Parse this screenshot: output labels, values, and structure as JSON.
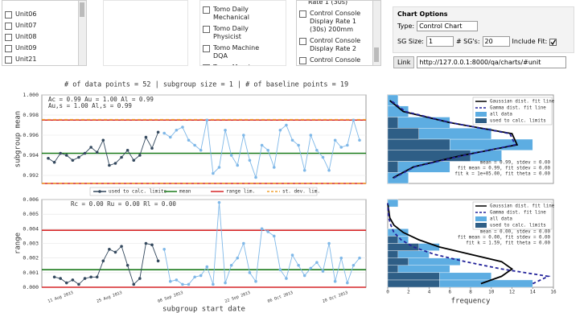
{
  "units": [
    "Unit06",
    "Unit07",
    "Unit08",
    "Unit09",
    "Unit21"
  ],
  "tests": [
    "Tomo Daily Mechanical",
    "Tomo Daily Physicist",
    "Tomo Machine DQA",
    "Tomo Morning Therapy Checks"
  ],
  "test_items_lead": "Rate 1 (30s)",
  "test_items": [
    "Control Console Display Rate 1 (30s) 200mm",
    "Control Console Display Rate 2",
    "Control Console Display Rate 2 (30s)"
  ],
  "chart_options": {
    "title": "Chart Options",
    "type_label": "Type:",
    "type": "Control Chart",
    "sg_size_label": "SG Size:",
    "sg_size": "1",
    "sgs_label": "# SG's:",
    "sgs": "20",
    "include_fit_label": "Include Fit:",
    "include_fit": true,
    "link_label": "Link",
    "link": "http://127.0.0.1:8000/qa/charts/#unit"
  },
  "summary": "# of data points = 52 |  subgroup size = 1 |  # of baseline points = 19",
  "chart_data": [
    {
      "type": "control",
      "y_label": "subgroup mean",
      "ylim": [
        0.9912,
        1.0
      ],
      "yticks": [
        0.992,
        0.994,
        0.996,
        0.998,
        {
          "value": 1.0,
          "label": "1.000"
        }
      ],
      "grid": true,
      "annotations": [
        "Ac    = 0.99    Au = 1.00    Al = 0.99",
        "Au,s = 1.00  Al,s = 0.99"
      ],
      "series": [
        {
          "name": "used to calc. limits",
          "color": "#34495e",
          "values": [
            0.9937,
            0.9933,
            0.9942,
            0.994,
            0.9935,
            0.9938,
            0.9942,
            0.9948,
            0.9943,
            0.9955,
            0.993,
            0.9932,
            0.9938,
            0.9945,
            0.9935,
            0.994,
            0.9958,
            0.9947,
            0.9963,
            null,
            null,
            null,
            null,
            null,
            null,
            null,
            null,
            null,
            null,
            null,
            null,
            null,
            null,
            null,
            null,
            null,
            null,
            null,
            null,
            null,
            null,
            null,
            null,
            null,
            null,
            null,
            null,
            null,
            null,
            null,
            null,
            null
          ]
        },
        {
          "color": "#7fb8e8",
          "values": [
            null,
            null,
            null,
            null,
            null,
            null,
            null,
            null,
            null,
            null,
            null,
            null,
            null,
            null,
            null,
            null,
            null,
            null,
            null,
            0.9962,
            0.9958,
            0.9965,
            0.9968,
            0.9955,
            0.995,
            0.9945,
            0.9975,
            0.9922,
            0.9928,
            0.9965,
            0.994,
            0.993,
            0.996,
            0.9935,
            0.9918,
            0.995,
            0.9945,
            0.9928,
            0.9965,
            0.997,
            0.9955,
            0.995,
            0.9925,
            0.996,
            0.9945,
            0.9938,
            0.9925,
            0.9955,
            0.9948,
            0.995,
            0.9975,
            0.9955
          ]
        }
      ],
      "limits": [
        {
          "name": "mean",
          "color": "#1a7a1a",
          "values": [
            0.9942
          ]
        },
        {
          "name": "range lim.",
          "color": "#d62728",
          "values": [
            0.9975,
            0.9912
          ]
        },
        {
          "name": "st. dev. lim.",
          "color": "#f0a030",
          "dash": true,
          "values": [
            0.99755,
            0.99122
          ]
        }
      ]
    },
    {
      "type": "control",
      "y_label": "range",
      "x_label": "subgroup start date",
      "ylim": [
        0,
        0.006
      ],
      "yticks": [
        {
          "value": 0,
          "label": "0.000"
        },
        0.001,
        0.002,
        0.003,
        0.004,
        0.005,
        0.006
      ],
      "grid": true,
      "annotations": [
        "Rc = 0.00    Ru = 0.00    Rl = 0.00"
      ],
      "categories": [
        null,
        null,
        "11 Aug 2013",
        null,
        null,
        null,
        null,
        null,
        null,
        null,
        "25 Aug 2013",
        null,
        null,
        null,
        null,
        null,
        null,
        null,
        null,
        null,
        "08 Sep 2013",
        null,
        null,
        null,
        null,
        null,
        null,
        null,
        null,
        null,
        null,
        "22 Sep 2013",
        null,
        null,
        null,
        null,
        null,
        null,
        "06 Oct 2013",
        null,
        null,
        null,
        null,
        null,
        null,
        null,
        null,
        "20 Oct 2013",
        null,
        null,
        null,
        null
      ],
      "series": [
        {
          "color": "#34495e",
          "values": [
            null,
            0.0007,
            0.0006,
            0.0003,
            0.0005,
            0.0002,
            0.0006,
            0.0007,
            0.0007,
            0.0018,
            0.0026,
            0.0024,
            0.0028,
            0.0015,
            0.0002,
            0.0006,
            0.003,
            0.0029,
            0.0018,
            null,
            null,
            null,
            null,
            null,
            null,
            null,
            null,
            null,
            null,
            null,
            null,
            null,
            null,
            null,
            null,
            null,
            null,
            null,
            null,
            null,
            null,
            null,
            null,
            null,
            null,
            null,
            null,
            null,
            null,
            null,
            null,
            null
          ]
        },
        {
          "color": "#7fb8e8",
          "values": [
            null,
            null,
            null,
            null,
            null,
            null,
            null,
            null,
            null,
            null,
            null,
            null,
            null,
            null,
            null,
            null,
            null,
            null,
            null,
            0.0026,
            0.0004,
            0.0005,
            0.0002,
            0.0002,
            0.0007,
            0.0008,
            0.0014,
            0.0002,
            0.0058,
            0.0003,
            0.0015,
            0.002,
            0.003,
            0.001,
            0.0004,
            0.004,
            0.0038,
            0.0035,
            0.0012,
            0.0006,
            0.0022,
            0.0015,
            0.0008,
            0.0013,
            0.0017,
            0.0011,
            0.003,
            0.0004,
            0.002,
            0.0003,
            0.0015,
            0.002
          ]
        }
      ],
      "limits": [
        {
          "color": "#1a7a1a",
          "values": [
            0.0012
          ]
        },
        {
          "color": "#d62728",
          "values": [
            0.0039,
            0
          ]
        }
      ]
    },
    {
      "type": "histogram",
      "bins": [
        0.9912,
        0.9923,
        0.9934,
        0.9945,
        0.9956,
        0.9967,
        0.9978,
        0.9989,
        1.0
      ],
      "xlim": [
        0,
        16
      ],
      "series": [
        {
          "name": "all data",
          "color": "#5dade2",
          "values": [
            2,
            6,
            11,
            14,
            10,
            6,
            2,
            1
          ]
        },
        {
          "name": "used to calc. limits",
          "color": "#2e5e86",
          "values": [
            0,
            1,
            8,
            6,
            3,
            1,
            0,
            0
          ]
        }
      ],
      "fits": [
        {
          "name": "Gaussian dist. fit line",
          "color": "#000000",
          "values": [
            0.5,
            2.5,
            7,
            12.5,
            12,
            6,
            1.5,
            0.2
          ]
        },
        {
          "name": "Gamma dist. fit line",
          "color": "#22229a",
          "dash": true,
          "values": [
            0.6,
            2.6,
            7.2,
            12.3,
            11.8,
            6.1,
            1.7,
            0.3
          ]
        }
      ],
      "annotations": [
        "mean = 0.99, stdev = 0.00",
        "fit mean = 0.99, fit stdev = 0.00",
        "fit k = 1e+05.00,  fit theta = 0.00"
      ]
    },
    {
      "type": "histogram",
      "x_label": "frequency",
      "bins": [
        0,
        0.0005,
        0.001,
        0.0015,
        0.002,
        0.0025,
        0.003,
        0.0035,
        0.004,
        0.0045,
        0.005,
        0.0055,
        0.006
      ],
      "xlim": [
        0,
        16
      ],
      "xticks": [
        0,
        2,
        4,
        6,
        8,
        10,
        12,
        14,
        16
      ],
      "series": [
        {
          "name": "all data",
          "color": "#5dade2",
          "values": [
            14,
            10,
            6,
            7,
            4,
            5,
            2,
            2,
            0,
            0,
            0,
            1
          ]
        },
        {
          "name": "used to calc. limits",
          "color": "#2e5e86",
          "values": [
            5,
            5,
            1,
            2,
            1,
            3,
            1,
            0,
            0,
            0,
            0,
            0
          ]
        }
      ],
      "fits": [
        {
          "name": "Gaussian dist. fit line",
          "color": "#000000",
          "values": [
            9,
            11,
            12,
            11,
            8,
            5,
            3,
            1.5,
            0.6,
            0.2,
            0.1,
            0
          ]
        },
        {
          "name": "Gamma dist. fit line",
          "color": "#22229a",
          "dash": true,
          "values": [
            14,
            15.5,
            11,
            7.5,
            4.5,
            2.5,
            1.3,
            0.6,
            0.3,
            0.1,
            0.05,
            0
          ]
        }
      ],
      "annotations": [
        "mean = 0.00,  stdev = 0.00",
        "fit mean = 0.00, fit stdev = 0.00",
        "fit k = 1.59,  fit theta = 0.00"
      ]
    }
  ]
}
